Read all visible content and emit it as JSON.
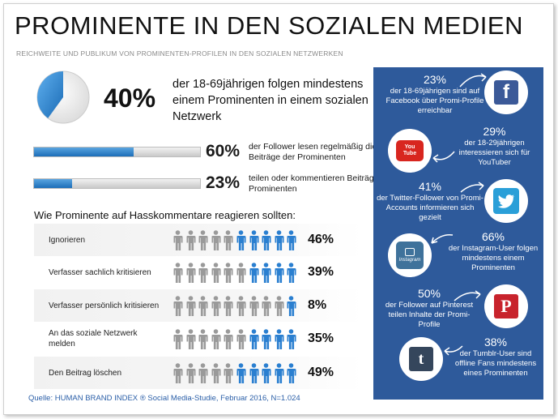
{
  "header": {
    "title": "PROMINENTE IN DEN SOZIALEN MEDIEN",
    "subtitle": "REICHWEITE UND PUBLIKUM VON PROMINENTEN-PROFILEN IN DEN SOZIALEN NETZWERKEN"
  },
  "headline_stat": {
    "percent": "40%",
    "value": 40,
    "text": "der 18-69jährigen folgen mindestens einem Prominenten in einem sozialen Netzwerk"
  },
  "bar_stats": [
    {
      "percent": "60%",
      "value": 60,
      "text": "der Follower lesen regelmäßig die Beiträge der Prominenten"
    },
    {
      "percent": "23%",
      "value": 23,
      "text": "teilen oder kommentieren Beiträge der Prominenten"
    }
  ],
  "reactions": {
    "title": "Wie Prominente auf Hasskommentare reagieren sollten:",
    "rows": [
      {
        "label": "Ignorieren",
        "percent": "46%",
        "blue_icons": 5
      },
      {
        "label": "Verfasser sachlich kritisieren",
        "percent": "39%",
        "blue_icons": 4
      },
      {
        "label": "Verfasser persönlich kritisieren",
        "percent": "8%",
        "blue_icons": 1
      },
      {
        "label": "An das soziale Netzwerk melden",
        "percent": "35%",
        "blue_icons": 4
      },
      {
        "label": "Den Beitrag löschen",
        "percent": "49%",
        "blue_icons": 5
      }
    ]
  },
  "source": "Quelle: HUMAN BRAND INDEX ® Social Media-Studie, Februar 2016, N=1.024",
  "networks": {
    "facebook": {
      "percent": "23%",
      "text": "der 18-69jährigen sind auf Facebook über Promi-Profile erreichbar",
      "icon": "facebook-icon",
      "glyph": "f"
    },
    "youtube": {
      "percent": "29%",
      "text": "der 18-29jährigen interessieren sich für YouTuber",
      "icon": "youtube-icon",
      "glyph": "You Tube"
    },
    "twitter": {
      "percent": "41%",
      "text": "der Twitter-Follower von Promi-Accounts informieren sich gezielt",
      "icon": "twitter-icon"
    },
    "instagram": {
      "percent": "66%",
      "text": "der Instagram-User folgen mindestens einem Prominenten",
      "icon": "instagram-icon",
      "glyph": "Instagram"
    },
    "pinterest": {
      "percent": "50%",
      "text": "der Follower auf Pinterest teilen Inhalte der Promi-Profile",
      "icon": "pinterest-icon",
      "glyph": "P"
    },
    "tumblr": {
      "percent": "38%",
      "text": "der Tumblr-User sind offline Fans mindestens eines Prominenten",
      "icon": "tumblr-icon",
      "glyph": "t"
    }
  },
  "colors": {
    "accent_blue": "#2a7fd0",
    "panel_blue": "#2e5a9b",
    "person_grey": "#9a9a9a",
    "facebook": "#3b5998",
    "youtube": "#d8261f",
    "twitter": "#2a9fd8",
    "pinterest": "#c8232c",
    "tumblr": "#35465c",
    "instagram": "#3f729b"
  }
}
